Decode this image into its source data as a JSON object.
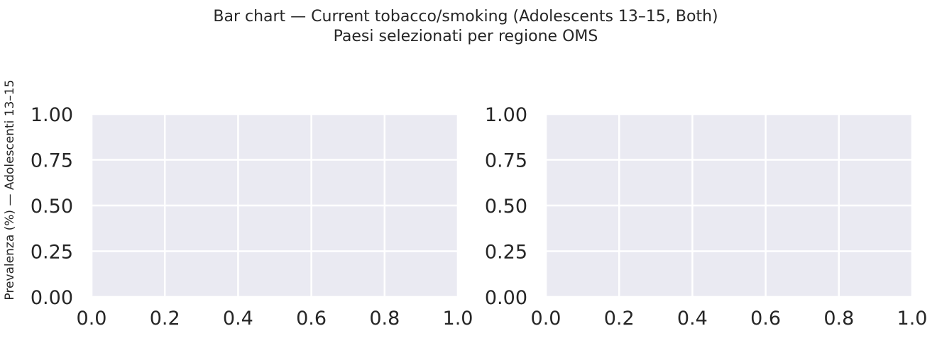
{
  "chart_data": {
    "title": "Bar chart — Current tobacco/smoking (Adolescents 13–15, Both)",
    "subtitle": "Paesi selezionati per regione OMS",
    "ylabel": "Prevalenza (%) — Adolescenti 13–15",
    "panels": [
      {
        "type": "bar",
        "categories": [],
        "values": [],
        "xlim": [
          0.0,
          1.0
        ],
        "ylim": [
          0.0,
          1.0
        ],
        "xticks": [
          "0.0",
          "0.2",
          "0.4",
          "0.6",
          "0.8",
          "1.0"
        ],
        "yticks": [
          "0.00",
          "0.25",
          "0.50",
          "0.75",
          "1.00"
        ],
        "grid": true
      },
      {
        "type": "bar",
        "categories": [],
        "values": [],
        "xlim": [
          0.0,
          1.0
        ],
        "ylim": [
          0.0,
          1.0
        ],
        "xticks": [
          "0.0",
          "0.2",
          "0.4",
          "0.6",
          "0.8",
          "1.0"
        ],
        "yticks": [
          "0.00",
          "0.25",
          "0.50",
          "0.75",
          "1.00"
        ],
        "grid": true
      }
    ],
    "colors": {
      "background": "#eaeaf2",
      "grid": "#ffffff",
      "text": "#262626"
    }
  }
}
